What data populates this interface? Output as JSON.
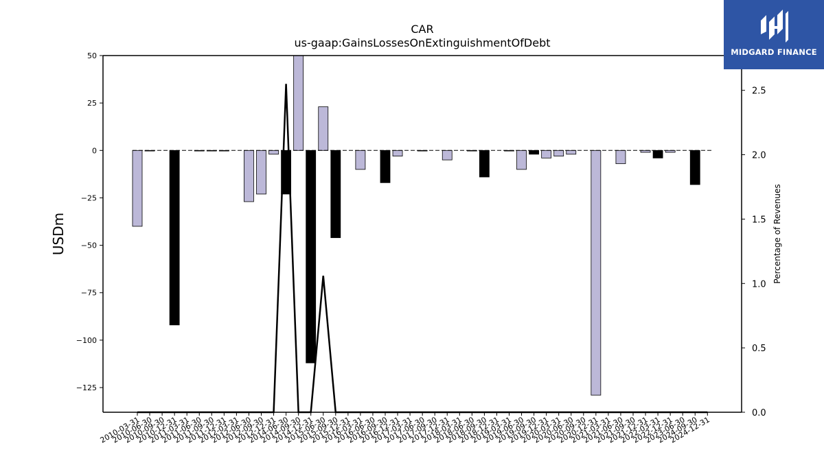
{
  "brand": {
    "name": "MIDGARD FINANCE",
    "bg_color": "#2e55a5"
  },
  "colors": {
    "bar_pos_or_neg_main": "#bcb8d8",
    "bar_alt": "#000000",
    "line": "#000000"
  },
  "chart_data": {
    "type": "bar",
    "title": "CAR",
    "subtitle": "us-gaap:GainsLossesOnExtinguishmentOfDebt",
    "ylabel": "USDm",
    "y2label": "Percentage of Revenues",
    "ylim": [
      -138,
      50
    ],
    "y2lim": [
      0,
      2.77
    ],
    "yticks": [
      50,
      25,
      0,
      -25,
      -50,
      -75,
      -100,
      -125
    ],
    "y2ticks": [
      "0.0",
      "0.5",
      "1.0",
      "1.5",
      "2.0",
      "2.5"
    ],
    "categories": [
      "2010-03-31",
      "2010-06-30",
      "2010-09-30",
      "2010-12-31",
      "2011-03-31",
      "2011-06-30",
      "2011-09-30",
      "2011-12-31",
      "2012-03-31",
      "2012-06-30",
      "2012-09-30",
      "2012-12-31",
      "2014-06-30",
      "2014-09-30",
      "2014-12-31",
      "2015-06-30",
      "2015-09-30",
      "2015-12-31",
      "2016-03-31",
      "2016-06-30",
      "2016-09-30",
      "2016-12-31",
      "2017-03-31",
      "2017-06-30",
      "2017-09-30",
      "2017-12-31",
      "2018-03-31",
      "2018-06-30",
      "2018-09-30",
      "2018-12-31",
      "2019-03-31",
      "2019-06-30",
      "2019-09-30",
      "2019-12-31",
      "2020-03-31",
      "2020-06-30",
      "2020-09-30",
      "2020-12-31",
      "2021-03-31",
      "2021-06-30",
      "2021-09-30",
      "2021-12-31",
      "2022-03-31",
      "2022-12-31",
      "2023-06-30",
      "2024-09-30",
      "2024-12-31"
    ],
    "series": [
      {
        "axis": "left",
        "kind": "bar",
        "values": [
          -40,
          -0.3,
          0,
          -92,
          0,
          -0.3,
          -0.3,
          -0.3,
          0,
          -27,
          -23,
          -2,
          -23,
          50,
          -112,
          23,
          -46,
          0,
          -10,
          0,
          -17,
          -3,
          0,
          -0.3,
          0,
          -5,
          0,
          -0.3,
          -14,
          0,
          -0.3,
          -10,
          -2,
          -4,
          -3,
          -2,
          0,
          -129,
          0,
          -7,
          0,
          -1,
          -4,
          -1,
          0,
          -18,
          0
        ],
        "colors": [
          "#bcb8d8",
          "#bcb8d8",
          "#bcb8d8",
          "#000000",
          "#bcb8d8",
          "#bcb8d8",
          "#bcb8d8",
          "#bcb8d8",
          "#bcb8d8",
          "#bcb8d8",
          "#bcb8d8",
          "#bcb8d8",
          "#000000",
          "#bcb8d8",
          "#000000",
          "#bcb8d8",
          "#000000",
          "#bcb8d8",
          "#bcb8d8",
          "#bcb8d8",
          "#000000",
          "#bcb8d8",
          "#bcb8d8",
          "#bcb8d8",
          "#bcb8d8",
          "#bcb8d8",
          "#bcb8d8",
          "#bcb8d8",
          "#000000",
          "#bcb8d8",
          "#bcb8d8",
          "#bcb8d8",
          "#000000",
          "#bcb8d8",
          "#bcb8d8",
          "#bcb8d8",
          "#bcb8d8",
          "#bcb8d8",
          "#bcb8d8",
          "#bcb8d8",
          "#bcb8d8",
          "#bcb8d8",
          "#000000",
          "#bcb8d8",
          "#bcb8d8",
          "#000000",
          "#bcb8d8"
        ]
      },
      {
        "axis": "right",
        "kind": "line",
        "values": [
          0,
          0,
          0,
          0,
          0,
          0,
          0,
          0,
          0,
          0,
          0,
          0,
          2.55,
          0,
          0,
          1.06,
          0,
          0,
          0,
          0,
          0,
          0,
          0,
          0,
          0,
          0,
          0,
          0,
          0,
          0,
          0,
          0,
          0,
          0,
          0,
          0,
          0,
          0,
          0,
          0,
          0,
          0,
          0,
          0,
          0,
          0,
          0
        ]
      }
    ],
    "grid": false,
    "legend": "none"
  }
}
